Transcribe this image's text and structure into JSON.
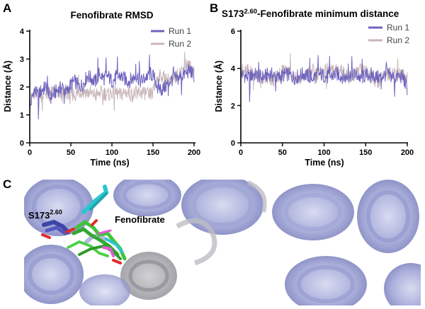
{
  "panels": {
    "a": {
      "letter": "A"
    },
    "b": {
      "letter": "B"
    },
    "c": {
      "letter": "C"
    }
  },
  "structure": {
    "residue_label_base": "S173",
    "residue_label_sup": "2.60",
    "ligand_label": "Fenofibrate",
    "colors": {
      "helices": "#a9aedd",
      "helices_grey": "#9a9aa2",
      "ligand_green": "#3ec43a",
      "ligand_cyan": "#2bc6cf",
      "ligand_magenta": "#e35ad6",
      "residue_blue": "#3d45a8",
      "oxygen_red": "#e02a2a"
    }
  },
  "chart_data": [
    {
      "type": "line",
      "title": "Fenofibrate RMSD",
      "xlabel": "Time (ns)",
      "ylabel": "Distance (Å)",
      "xlim": [
        0,
        200
      ],
      "ylim": [
        0,
        4
      ],
      "xticks": [
        0,
        50,
        100,
        150,
        200
      ],
      "yticks": [
        0,
        1,
        2,
        3,
        4
      ],
      "legend_position": "top-right",
      "series": [
        {
          "name": "Run 1",
          "color": "#6e63be",
          "x": [
            0,
            5,
            10,
            15,
            20,
            25,
            30,
            35,
            40,
            45,
            50,
            55,
            60,
            65,
            70,
            75,
            80,
            85,
            90,
            95,
            100,
            105,
            110,
            115,
            120,
            125,
            130,
            135,
            140,
            145,
            150,
            155,
            160,
            165,
            170,
            175,
            180,
            185,
            190,
            195,
            200
          ],
          "y": [
            1.2,
            1.9,
            1.7,
            1.9,
            2.0,
            1.6,
            1.8,
            1.9,
            2.0,
            1.8,
            2.1,
            2.2,
            2.0,
            2.1,
            2.4,
            2.3,
            2.2,
            2.5,
            2.3,
            2.4,
            2.2,
            2.3,
            2.4,
            2.3,
            2.2,
            2.3,
            2.4,
            2.2,
            2.3,
            2.5,
            2.4,
            2.1,
            1.9,
            2.0,
            2.2,
            2.3,
            2.3,
            2.4,
            2.5,
            2.6,
            2.4
          ]
        },
        {
          "name": "Run 2",
          "color": "#c9b6b9",
          "x": [
            0,
            5,
            10,
            15,
            20,
            25,
            30,
            35,
            40,
            45,
            50,
            55,
            60,
            65,
            70,
            75,
            80,
            85,
            90,
            95,
            100,
            105,
            110,
            115,
            120,
            125,
            130,
            135,
            140,
            145,
            150,
            155,
            160,
            165,
            170,
            175,
            180,
            185,
            190,
            195,
            200
          ],
          "y": [
            1.5,
            1.7,
            1.8,
            1.7,
            1.8,
            1.9,
            1.7,
            1.8,
            1.7,
            1.8,
            1.8,
            1.7,
            1.8,
            1.9,
            1.8,
            1.8,
            1.7,
            1.8,
            1.8,
            1.7,
            1.8,
            1.8,
            1.7,
            1.8,
            1.8,
            1.7,
            1.8,
            1.8,
            1.8,
            1.7,
            1.8,
            2.3,
            2.4,
            2.3,
            2.2,
            2.3,
            2.4,
            2.6,
            2.8,
            2.7,
            2.6
          ]
        }
      ]
    },
    {
      "type": "line",
      "title_base": "S173",
      "title_sup": "2.60",
      "title_rest": "-Fenofibrate minimum distance",
      "xlabel": "Time (ns)",
      "ylabel": "Distance (Å)",
      "xlim": [
        0,
        200
      ],
      "ylim": [
        0,
        6
      ],
      "xticks": [
        0,
        50,
        100,
        150,
        200
      ],
      "yticks": [
        0,
        2,
        4,
        6
      ],
      "legend_position": "top-right",
      "series": [
        {
          "name": "Run 1",
          "color": "#6e63be",
          "x": [
            0,
            5,
            10,
            15,
            20,
            25,
            30,
            35,
            40,
            45,
            50,
            55,
            60,
            65,
            70,
            75,
            80,
            85,
            90,
            95,
            100,
            105,
            110,
            115,
            120,
            125,
            130,
            135,
            140,
            145,
            150,
            155,
            160,
            165,
            170,
            175,
            180,
            185,
            190,
            195,
            200
          ],
          "y": [
            3.7,
            3.6,
            3.5,
            3.7,
            3.6,
            3.5,
            3.6,
            3.7,
            3.6,
            3.5,
            3.6,
            3.7,
            3.6,
            3.5,
            3.6,
            3.7,
            3.6,
            3.5,
            3.6,
            3.7,
            3.6,
            3.5,
            3.6,
            3.7,
            3.6,
            3.5,
            3.6,
            3.7,
            3.6,
            3.5,
            3.6,
            3.7,
            3.6,
            3.5,
            3.6,
            3.7,
            3.6,
            3.5,
            3.6,
            3.5,
            2.9
          ]
        },
        {
          "name": "Run 2",
          "color": "#c9b6b9",
          "x": [
            0,
            5,
            10,
            15,
            20,
            25,
            30,
            35,
            40,
            45,
            50,
            55,
            60,
            65,
            70,
            75,
            80,
            85,
            90,
            95,
            100,
            105,
            110,
            115,
            120,
            125,
            130,
            135,
            140,
            145,
            150,
            155,
            160,
            165,
            170,
            175,
            180,
            185,
            190,
            195,
            200
          ],
          "y": [
            3.9,
            3.8,
            3.9,
            3.7,
            3.6,
            3.5,
            3.4,
            3.3,
            3.4,
            3.6,
            3.8,
            3.9,
            3.8,
            3.6,
            3.4,
            3.5,
            3.7,
            3.9,
            3.8,
            3.7,
            3.8,
            3.9,
            3.8,
            4.0,
            3.9,
            3.7,
            3.5,
            3.6,
            3.8,
            3.9,
            3.8,
            3.7,
            3.4,
            3.3,
            3.5,
            3.6,
            3.7,
            3.8,
            3.7,
            3.6,
            3.6
          ]
        }
      ]
    }
  ]
}
